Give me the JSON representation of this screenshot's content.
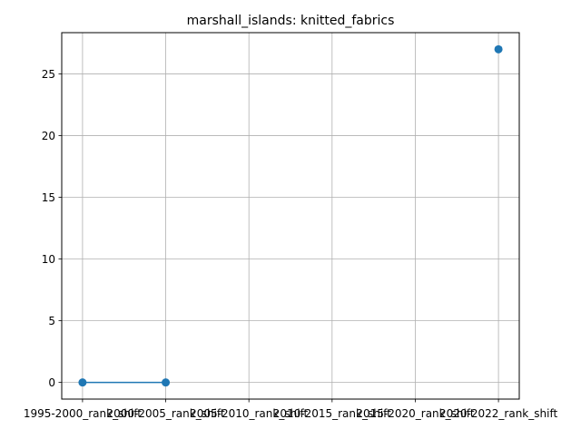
{
  "chart_data": {
    "type": "line",
    "title": "marshall_islands: knitted_fabrics",
    "xlabel": "",
    "ylabel": "",
    "categories": [
      "1995-2000_rank_shift",
      "2000-2005_rank_shift",
      "2005-2010_rank_shift",
      "2010-2015_rank_shift",
      "2015-2020_rank_shift",
      "2020-2022_rank_shift"
    ],
    "series": [
      {
        "values": [
          0,
          0,
          null,
          null,
          null,
          27
        ],
        "color": "#1f77b4"
      }
    ],
    "yticks": [
      0,
      5,
      10,
      15,
      20,
      25
    ],
    "ylim": [
      -1.35,
      28.35
    ],
    "grid": true,
    "legend": "none"
  }
}
